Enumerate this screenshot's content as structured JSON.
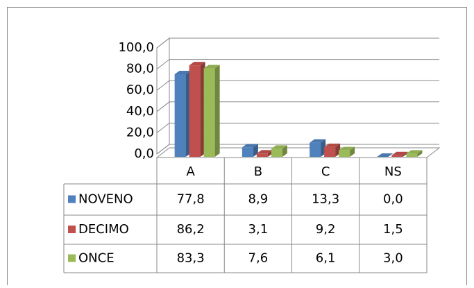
{
  "chart_data": {
    "type": "bar3d",
    "categories": [
      "A",
      "B",
      "C",
      "NS"
    ],
    "series": [
      {
        "name": "NOVENO",
        "color": "#4f81bd",
        "values": [
          77.8,
          8.9,
          13.3,
          0.0
        ],
        "value_labels": [
          "77,8",
          "8,9",
          "13,3",
          "0,0"
        ]
      },
      {
        "name": "DECIMO",
        "color": "#c0504d",
        "values": [
          86.2,
          3.1,
          9.2,
          1.5
        ],
        "value_labels": [
          "86,2",
          "3,1",
          "9,2",
          "1,5"
        ]
      },
      {
        "name": "ONCE",
        "color": "#9bbb59",
        "values": [
          83.3,
          7.6,
          6.1,
          3.0
        ],
        "value_labels": [
          "83,3",
          "7,6",
          "6,1",
          "3,0"
        ]
      }
    ],
    "ylim": [
      0,
      100
    ],
    "yticks": [
      {
        "value": 0,
        "label": "0,0"
      },
      {
        "value": 20,
        "label": "20,0"
      },
      {
        "value": 40,
        "label": "40,0"
      },
      {
        "value": 60,
        "label": "60,0"
      },
      {
        "value": 80,
        "label": "80,0"
      },
      {
        "value": 100,
        "label": "100,0"
      }
    ],
    "grid": true,
    "data_table": true
  }
}
